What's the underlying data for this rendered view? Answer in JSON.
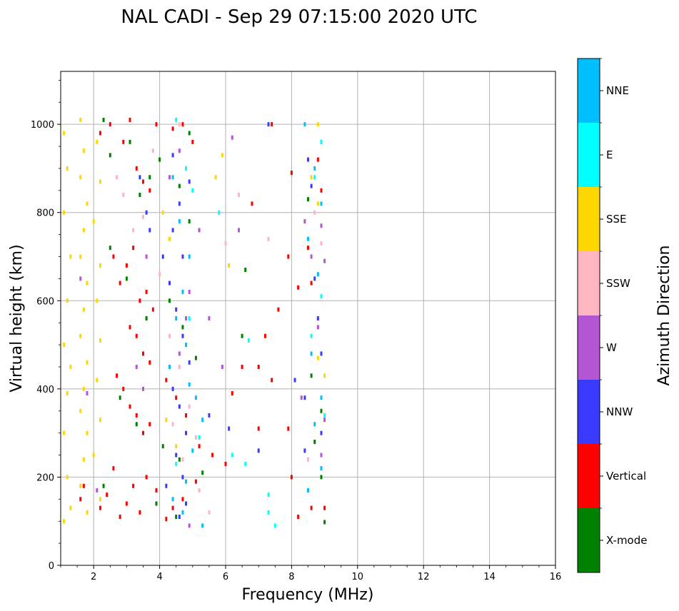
{
  "chart_data": {
    "type": "scatter",
    "title": "NAL CADI - Sep 29 07:15:00 2020 UTC",
    "xlabel": "Frequency (MHz)",
    "ylabel": "Virtual height (km)",
    "xlim": [
      1,
      16
    ],
    "ylim": [
      0,
      1120
    ],
    "xticks": [
      2,
      4,
      6,
      8,
      10,
      12,
      14,
      16
    ],
    "yticks": [
      0,
      200,
      400,
      600,
      800,
      1000
    ],
    "grid": true,
    "colorbar": {
      "label": "Azimuth Direction",
      "categories": [
        {
          "name": "X-mode",
          "color": "#008000"
        },
        {
          "name": "Vertical",
          "color": "#ff0000"
        },
        {
          "name": "NNW",
          "color": "#3a3aff"
        },
        {
          "name": "W",
          "color": "#b455d4"
        },
        {
          "name": "SSW",
          "color": "#ffb6c1"
        },
        {
          "name": "SSE",
          "color": "#ffd700"
        },
        {
          "name": "E",
          "color": "#00ffff"
        },
        {
          "name": "NNE",
          "color": "#00bfff"
        }
      ]
    },
    "series": [
      {
        "name": "X-mode",
        "points": [
          [
            2.3,
            1010
          ],
          [
            2.5,
            930
          ],
          [
            3.1,
            960
          ],
          [
            3.7,
            880
          ],
          [
            4.0,
            920
          ],
          [
            4.6,
            860
          ],
          [
            4.9,
            980
          ],
          [
            8.9,
            960
          ],
          [
            2.5,
            720
          ],
          [
            3.0,
            650
          ],
          [
            3.6,
            560
          ],
          [
            4.3,
            600
          ],
          [
            4.7,
            540
          ],
          [
            5.1,
            470
          ],
          [
            8.6,
            430
          ],
          [
            8.9,
            350
          ],
          [
            2.8,
            380
          ],
          [
            3.3,
            320
          ],
          [
            4.1,
            270
          ],
          [
            4.6,
            240
          ],
          [
            5.3,
            210
          ],
          [
            8.7,
            280
          ],
          [
            8.9,
            200
          ],
          [
            9.0,
            98
          ],
          [
            2.3,
            180
          ],
          [
            3.9,
            140
          ],
          [
            4.5,
            110
          ],
          [
            6.6,
            670
          ],
          [
            6.5,
            520
          ],
          [
            8.5,
            830
          ],
          [
            4.9,
            780
          ],
          [
            3.4,
            840
          ]
        ]
      },
      {
        "name": "Vertical",
        "points": [
          [
            1.6,
            150
          ],
          [
            1.7,
            180
          ],
          [
            2.2,
            130
          ],
          [
            2.4,
            160
          ],
          [
            2.6,
            220
          ],
          [
            2.8,
            110
          ],
          [
            3.0,
            140
          ],
          [
            3.2,
            180
          ],
          [
            3.4,
            120
          ],
          [
            3.6,
            200
          ],
          [
            3.9,
            170
          ],
          [
            4.2,
            105
          ],
          [
            4.4,
            130
          ],
          [
            4.7,
            150
          ],
          [
            5.1,
            190
          ],
          [
            2.2,
            980
          ],
          [
            2.5,
            1000
          ],
          [
            2.9,
            960
          ],
          [
            3.1,
            1010
          ],
          [
            3.3,
            900
          ],
          [
            3.5,
            870
          ],
          [
            3.7,
            850
          ],
          [
            3.9,
            1000
          ],
          [
            4.4,
            990
          ],
          [
            4.7,
            1000
          ],
          [
            5.0,
            960
          ],
          [
            2.6,
            700
          ],
          [
            2.8,
            640
          ],
          [
            3.0,
            680
          ],
          [
            3.2,
            720
          ],
          [
            3.4,
            600
          ],
          [
            3.6,
            620
          ],
          [
            3.8,
            580
          ],
          [
            3.1,
            540
          ],
          [
            3.3,
            520
          ],
          [
            3.5,
            480
          ],
          [
            3.7,
            460
          ],
          [
            2.7,
            430
          ],
          [
            2.9,
            400
          ],
          [
            3.1,
            360
          ],
          [
            3.3,
            340
          ],
          [
            3.5,
            300
          ],
          [
            3.7,
            320
          ],
          [
            4.2,
            420
          ],
          [
            4.5,
            380
          ],
          [
            4.8,
            340
          ],
          [
            5.2,
            270
          ],
          [
            5.6,
            250
          ],
          [
            6.0,
            230
          ],
          [
            6.2,
            390
          ],
          [
            6.8,
            820
          ],
          [
            7.4,
            1000
          ],
          [
            7.2,
            520
          ],
          [
            7.6,
            580
          ],
          [
            7.9,
            700
          ],
          [
            8.0,
            890
          ],
          [
            8.2,
            630
          ],
          [
            8.5,
            720
          ],
          [
            8.6,
            640
          ],
          [
            8.8,
            920
          ],
          [
            8.9,
            850
          ],
          [
            7.0,
            310
          ],
          [
            7.4,
            420
          ],
          [
            7.9,
            310
          ],
          [
            8.0,
            200
          ],
          [
            8.2,
            110
          ],
          [
            8.6,
            130
          ],
          [
            9.0,
            130
          ],
          [
            6.5,
            450
          ],
          [
            7.0,
            450
          ]
        ]
      },
      {
        "name": "NNW",
        "points": [
          [
            3.4,
            880
          ],
          [
            3.6,
            800
          ],
          [
            3.7,
            760
          ],
          [
            4.1,
            700
          ],
          [
            4.3,
            640
          ],
          [
            4.5,
            580
          ],
          [
            4.7,
            520
          ],
          [
            4.9,
            460
          ],
          [
            4.4,
            400
          ],
          [
            4.6,
            360
          ],
          [
            4.8,
            300
          ],
          [
            4.5,
            250
          ],
          [
            4.7,
            200
          ],
          [
            4.2,
            180
          ],
          [
            4.6,
            110
          ],
          [
            4.8,
            140
          ],
          [
            4.6,
            820
          ],
          [
            4.9,
            870
          ],
          [
            4.4,
            930
          ],
          [
            7.3,
            1000
          ],
          [
            8.1,
            420
          ],
          [
            8.4,
            380
          ],
          [
            8.6,
            860
          ],
          [
            8.7,
            650
          ],
          [
            8.8,
            560
          ],
          [
            8.9,
            480
          ],
          [
            8.9,
            300
          ],
          [
            8.4,
            260
          ],
          [
            8.5,
            920
          ],
          [
            7.0,
            260
          ],
          [
            6.1,
            310
          ],
          [
            5.5,
            340
          ],
          [
            4.4,
            760
          ],
          [
            4.7,
            700
          ]
        ]
      },
      {
        "name": "W",
        "points": [
          [
            1.6,
            650
          ],
          [
            1.8,
            390
          ],
          [
            2.1,
            170
          ],
          [
            3.3,
            450
          ],
          [
            3.5,
            400
          ],
          [
            3.6,
            700
          ],
          [
            4.6,
            480
          ],
          [
            4.8,
            560
          ],
          [
            4.9,
            620
          ],
          [
            5.2,
            760
          ],
          [
            4.3,
            880
          ],
          [
            4.6,
            940
          ],
          [
            8.4,
            780
          ],
          [
            8.6,
            700
          ],
          [
            8.9,
            770
          ],
          [
            9.0,
            690
          ],
          [
            8.8,
            540
          ],
          [
            8.3,
            380
          ],
          [
            9.0,
            330
          ],
          [
            8.9,
            250
          ],
          [
            4.9,
            90
          ],
          [
            5.5,
            560
          ],
          [
            5.9,
            450
          ],
          [
            6.2,
            970
          ],
          [
            6.4,
            760
          ]
        ]
      },
      {
        "name": "SSW",
        "points": [
          [
            2.7,
            880
          ],
          [
            2.9,
            840
          ],
          [
            3.2,
            760
          ],
          [
            3.5,
            790
          ],
          [
            3.8,
            940
          ],
          [
            4.0,
            660
          ],
          [
            4.3,
            520
          ],
          [
            4.6,
            450
          ],
          [
            4.9,
            360
          ],
          [
            5.1,
            290
          ],
          [
            4.4,
            320
          ],
          [
            4.7,
            240
          ],
          [
            5.2,
            170
          ],
          [
            5.5,
            120
          ],
          [
            6.0,
            730
          ],
          [
            6.4,
            840
          ],
          [
            7.3,
            740
          ],
          [
            4.6,
            1000
          ],
          [
            8.7,
            800
          ],
          [
            8.9,
            730
          ],
          [
            8.5,
            240
          ]
        ]
      },
      {
        "name": "SSE",
        "points": [
          [
            1.1,
            980
          ],
          [
            1.2,
            900
          ],
          [
            1.1,
            800
          ],
          [
            1.3,
            700
          ],
          [
            1.2,
            600
          ],
          [
            1.1,
            500
          ],
          [
            1.3,
            450
          ],
          [
            1.2,
            390
          ],
          [
            1.1,
            300
          ],
          [
            1.2,
            200
          ],
          [
            1.3,
            130
          ],
          [
            1.1,
            100
          ],
          [
            1.6,
            1010
          ],
          [
            1.7,
            940
          ],
          [
            1.6,
            880
          ],
          [
            1.8,
            820
          ],
          [
            1.7,
            760
          ],
          [
            1.6,
            700
          ],
          [
            1.8,
            640
          ],
          [
            1.7,
            580
          ],
          [
            1.6,
            520
          ],
          [
            1.8,
            460
          ],
          [
            1.7,
            400
          ],
          [
            1.6,
            350
          ],
          [
            1.8,
            300
          ],
          [
            1.7,
            240
          ],
          [
            1.6,
            180
          ],
          [
            1.8,
            120
          ],
          [
            2.1,
            960
          ],
          [
            2.2,
            870
          ],
          [
            2.0,
            780
          ],
          [
            2.2,
            680
          ],
          [
            2.1,
            600
          ],
          [
            2.2,
            510
          ],
          [
            2.1,
            420
          ],
          [
            2.2,
            330
          ],
          [
            2.0,
            250
          ],
          [
            2.2,
            150
          ],
          [
            4.1,
            800
          ],
          [
            4.3,
            740
          ],
          [
            4.2,
            330
          ],
          [
            4.5,
            270
          ],
          [
            5.9,
            930
          ],
          [
            8.8,
            1000
          ],
          [
            8.6,
            880
          ],
          [
            8.8,
            820
          ],
          [
            9.0,
            430
          ],
          [
            8.8,
            470
          ],
          [
            5.7,
            880
          ],
          [
            6.1,
            680
          ]
        ]
      },
      {
        "name": "E",
        "points": [
          [
            4.5,
            1010
          ],
          [
            4.8,
            900
          ],
          [
            5.0,
            850
          ],
          [
            4.9,
            560
          ],
          [
            4.5,
            230
          ],
          [
            5.2,
            290
          ],
          [
            6.2,
            250
          ],
          [
            6.6,
            230
          ],
          [
            7.3,
            160
          ],
          [
            7.5,
            90
          ],
          [
            7.3,
            120
          ],
          [
            8.9,
            960
          ],
          [
            8.9,
            610
          ],
          [
            8.7,
            880
          ],
          [
            9.0,
            340
          ],
          [
            8.6,
            520
          ],
          [
            5.8,
            800
          ],
          [
            6.7,
            510
          ]
        ]
      },
      {
        "name": "NNE",
        "points": [
          [
            4.4,
            880
          ],
          [
            4.6,
            780
          ],
          [
            4.9,
            700
          ],
          [
            4.7,
            620
          ],
          [
            4.5,
            560
          ],
          [
            4.8,
            500
          ],
          [
            4.3,
            450
          ],
          [
            4.9,
            410
          ],
          [
            5.1,
            380
          ],
          [
            5.3,
            330
          ],
          [
            5.0,
            260
          ],
          [
            4.8,
            190
          ],
          [
            4.4,
            150
          ],
          [
            4.7,
            120
          ],
          [
            5.3,
            90
          ],
          [
            8.4,
            1000
          ],
          [
            8.7,
            900
          ],
          [
            8.9,
            820
          ],
          [
            8.5,
            740
          ],
          [
            8.8,
            660
          ],
          [
            8.6,
            480
          ],
          [
            8.9,
            380
          ],
          [
            8.7,
            320
          ],
          [
            8.9,
            220
          ],
          [
            8.5,
            170
          ]
        ]
      }
    ]
  }
}
